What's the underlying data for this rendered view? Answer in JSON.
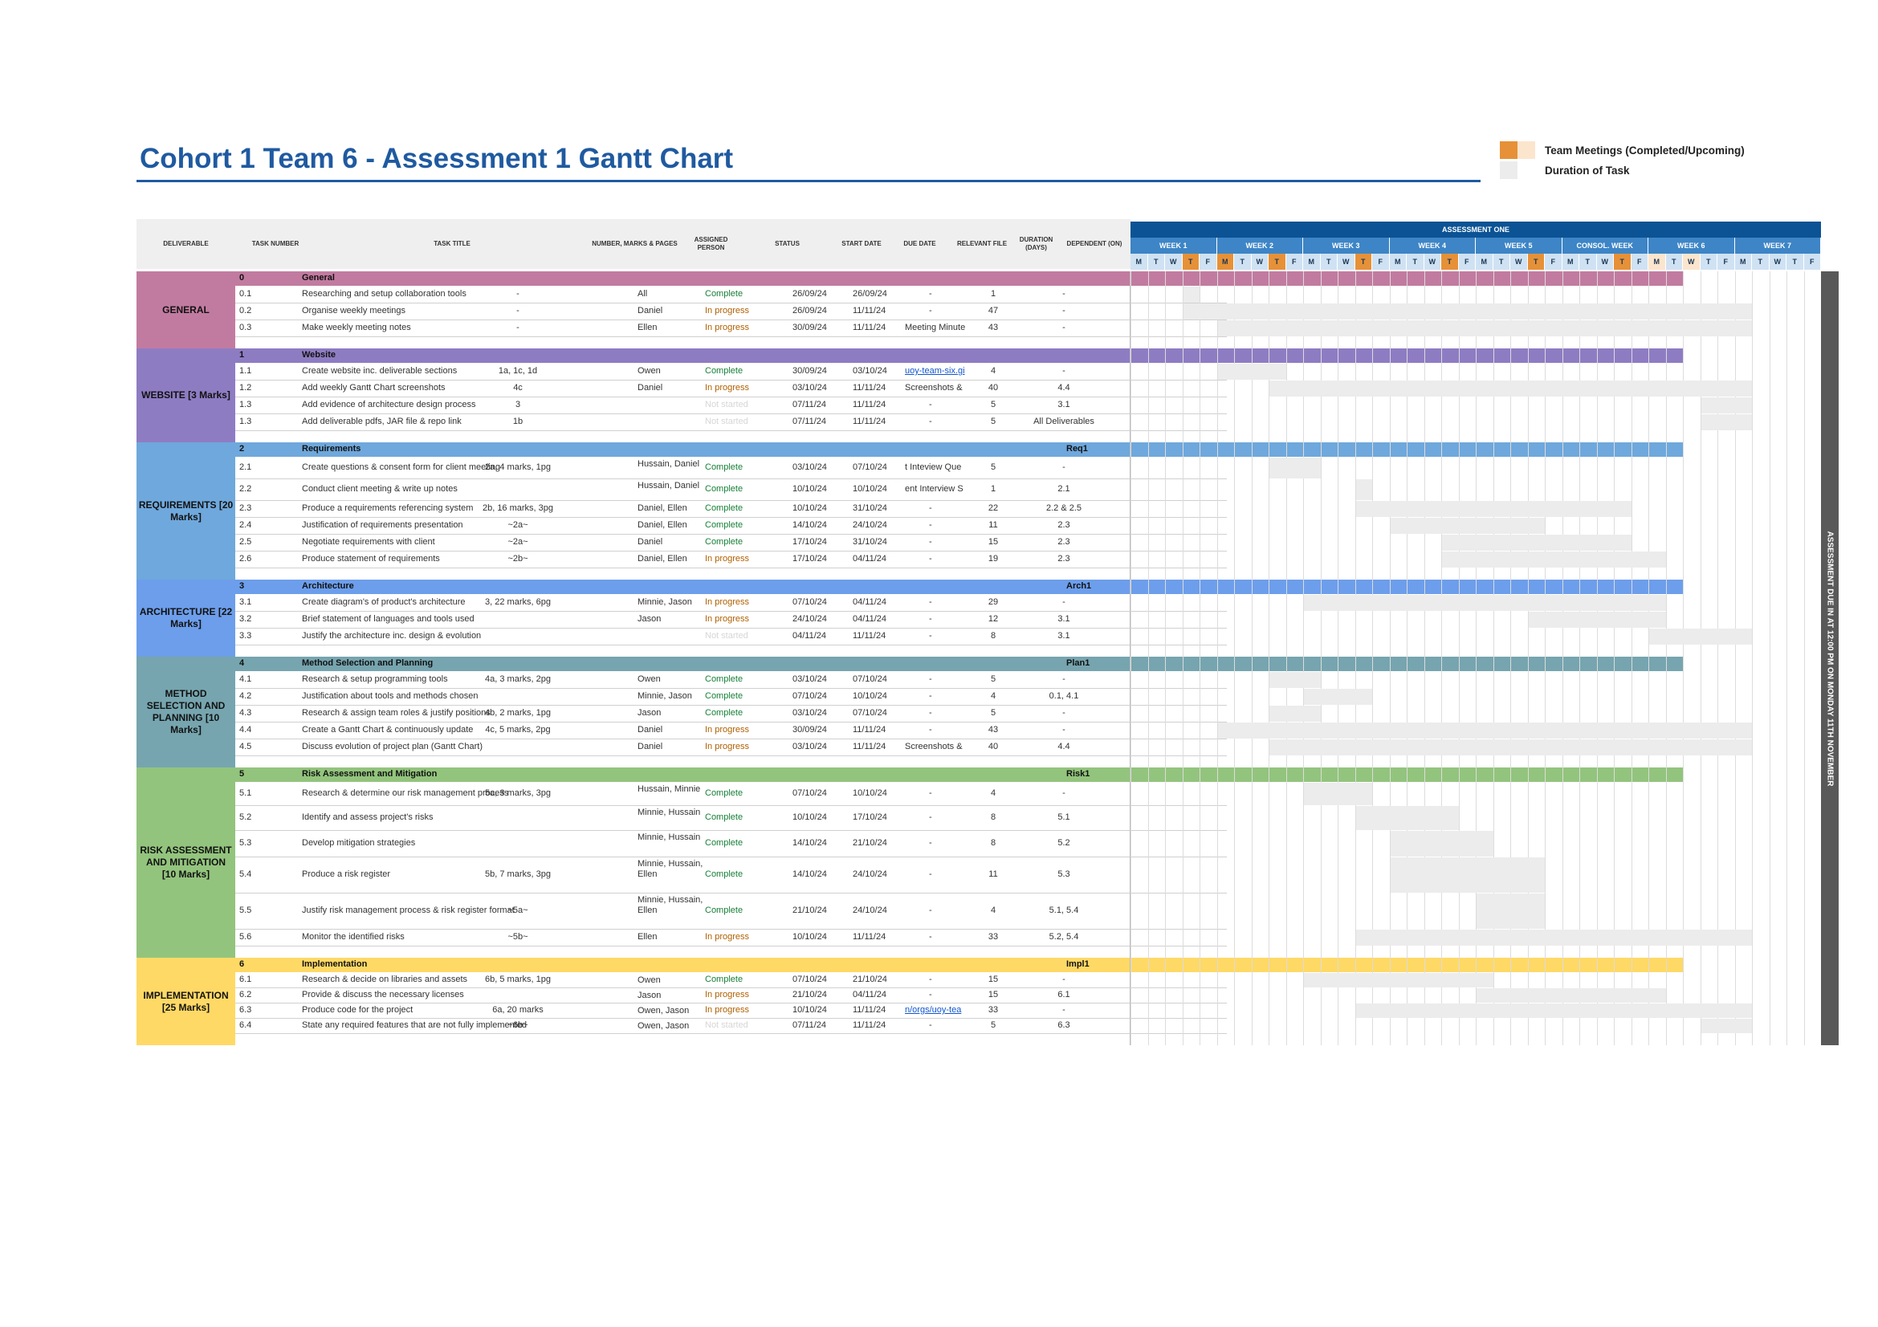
{
  "title": "Cohort 1 Team 6 - Assessment 1 Gantt Chart",
  "legend": [
    {
      "label": "Team Meetings (Completed/Upcoming)",
      "colors": [
        "#e69138",
        "#fce5cd"
      ]
    },
    {
      "label": "Duration of Task",
      "colors": [
        "#ececec"
      ]
    }
  ],
  "headers": {
    "deliverable": "DELIVERABLE",
    "task_number": "TASK NUMBER",
    "task_title": "TASK TITLE",
    "marks": "NUMBER, MARKS & PAGES",
    "assigned": "ASSIGNED PERSON",
    "status": "STATUS",
    "start": "START DATE",
    "due": "DUE DATE",
    "file": "RELEVANT FILE",
    "duration": "DURATION (DAYS)",
    "dependent": "DEPENDENT (ON)"
  },
  "assessment_label": "ASSESSMENT ONE",
  "weeks": [
    "WEEK 1",
    "WEEK 2",
    "WEEK 3",
    "WEEK 4",
    "WEEK 5",
    "CONSOL. WEEK",
    "WEEK 6",
    "WEEK 7"
  ],
  "days": [
    "M",
    "T",
    "W",
    "T",
    "F"
  ],
  "due_banner": "ASSESSMENT DUE IN AT 12:00 PM ON MONDAY 11TH NOVEMBER",
  "colors": {
    "general": "#c27ba0",
    "website": "#8e7cc3",
    "requirements": "#6fa8dc",
    "architecture": "#6d9eeb",
    "method": "#76a5af",
    "risk": "#93c47d",
    "implementation": "#ffd966",
    "header_dark": "#0b5394",
    "header_mid": "#3d85c6",
    "day_light": "#cfe2f3",
    "meeting_done": "#e69138",
    "meeting_upcoming": "#fce5cd"
  },
  "sections": [
    {
      "key": "general",
      "label": "GENERAL",
      "num": "0",
      "name": "General",
      "ref": "",
      "tasks": [
        {
          "num": "0.1",
          "title": "Researching and setup collaboration tools",
          "marks": "-",
          "person": "All",
          "status": "Complete",
          "start": "26/09/24",
          "due": "26/09/24",
          "file": "-",
          "duration": "1",
          "dep": "-"
        },
        {
          "num": "0.2",
          "title": "Organise weekly meetings",
          "marks": "-",
          "person": "Daniel",
          "status": "In progress",
          "start": "26/09/24",
          "due": "11/11/24",
          "file": "-",
          "duration": "47",
          "dep": "-"
        },
        {
          "num": "0.3",
          "title": "Make weekly meeting notes",
          "marks": "-",
          "person": "Ellen",
          "status": "In progress",
          "start": "30/09/24",
          "due": "11/11/24",
          "file": "Meeting Minute",
          "duration": "43",
          "dep": "-"
        }
      ]
    },
    {
      "key": "website",
      "label": "WEBSITE [3 Marks]",
      "num": "1",
      "name": "Website",
      "ref": "",
      "tasks": [
        {
          "num": "1.1",
          "title": "Create website inc. deliverable sections",
          "marks": "1a, 1c, 1d",
          "person": "Owen",
          "status": "Complete",
          "start": "30/09/24",
          "due": "03/10/24",
          "file": "uoy-team-six.gi",
          "duration": "4",
          "dep": "-"
        },
        {
          "num": "1.2",
          "title": "Add weekly Gantt Chart screenshots",
          "marks": "4c",
          "person": "Daniel",
          "status": "In progress",
          "start": "03/10/24",
          "due": "11/11/24",
          "file": "Screenshots &",
          "duration": "40",
          "dep": "4.4"
        },
        {
          "num": "1.3",
          "title": "Add evidence of architecture design process",
          "marks": "3",
          "person": "",
          "status": "Not started",
          "start": "07/11/24",
          "due": "11/11/24",
          "file": "-",
          "duration": "5",
          "dep": "3.1"
        },
        {
          "num": "1.3",
          "title": "Add deliverable pdfs, JAR file & repo link",
          "marks": "1b",
          "person": "",
          "status": "Not started",
          "start": "07/11/24",
          "due": "11/11/24",
          "file": "-",
          "duration": "5",
          "dep": "All Deliverables"
        }
      ]
    },
    {
      "key": "requirements",
      "label": "REQUIREMENTS [20 Marks]",
      "num": "2",
      "name": "Requirements",
      "ref": "Req1",
      "tasks": [
        {
          "num": "2.1",
          "title": "Create questions & consent form for client meeting",
          "marks": "2a, 4 marks, 1pg",
          "person": "Hussain, Daniel",
          "status": "Complete",
          "start": "03/10/24",
          "due": "07/10/24",
          "file": "t Inteview Que",
          "duration": "5",
          "dep": "-"
        },
        {
          "num": "2.2",
          "title": "Conduct client meeting & write up notes",
          "marks": "",
          "person": "Hussain, Daniel",
          "status": "Complete",
          "start": "10/10/24",
          "due": "10/10/24",
          "file": "ent Interview S",
          "duration": "1",
          "dep": "2.1"
        },
        {
          "num": "2.3",
          "title": "Produce a requirements referencing system",
          "marks": "2b, 16 marks, 3pg",
          "person": "Daniel, Ellen",
          "status": "Complete",
          "start": "10/10/24",
          "due": "31/10/24",
          "file": "-",
          "duration": "22",
          "dep": "2.2 & 2.5"
        },
        {
          "num": "2.4",
          "title": "Justification of requirements presentation",
          "marks": "~2a~",
          "person": "Daniel, Ellen",
          "status": "Complete",
          "start": "14/10/24",
          "due": "24/10/24",
          "file": "-",
          "duration": "11",
          "dep": "2.3"
        },
        {
          "num": "2.5",
          "title": "Negotiate requirements with client",
          "marks": "~2a~",
          "person": "Daniel",
          "status": "Complete",
          "start": "17/10/24",
          "due": "31/10/24",
          "file": "-",
          "duration": "15",
          "dep": "2.3"
        },
        {
          "num": "2.6",
          "title": "Produce statement of requirements",
          "marks": "~2b~",
          "person": "Daniel, Ellen",
          "status": "In progress",
          "start": "17/10/24",
          "due": "04/11/24",
          "file": "-",
          "duration": "19",
          "dep": "2.3"
        }
      ]
    },
    {
      "key": "architecture",
      "label": "ARCHITECTURE [22 Marks]",
      "num": "3",
      "name": "Architecture",
      "ref": "Arch1",
      "tasks": [
        {
          "num": "3.1",
          "title": "Create diagram's of product's architecture",
          "marks": "3, 22 marks, 6pg",
          "person": "Minnie, Jason",
          "status": "In progress",
          "start": "07/10/24",
          "due": "04/11/24",
          "file": "-",
          "duration": "29",
          "dep": "-"
        },
        {
          "num": "3.2",
          "title": "Brief statement of languages and tools used",
          "marks": "",
          "person": "Jason",
          "status": "In progress",
          "start": "24/10/24",
          "due": "04/11/24",
          "file": "-",
          "duration": "12",
          "dep": "3.1"
        },
        {
          "num": "3.3",
          "title": "Justify the architecture inc. design & evolution",
          "marks": "",
          "person": "",
          "status": "Not started",
          "start": "04/11/24",
          "due": "11/11/24",
          "file": "-",
          "duration": "8",
          "dep": "3.1"
        }
      ]
    },
    {
      "key": "method",
      "label": "METHOD SELECTION AND PLANNING [10 Marks]",
      "num": "4",
      "name": "Method Selection and Planning",
      "ref": "Plan1",
      "tasks": [
        {
          "num": "4.1",
          "title": "Research & setup programming tools",
          "marks": "4a, 3 marks, 2pg",
          "person": "Owen",
          "status": "Complete",
          "start": "03/10/24",
          "due": "07/10/24",
          "file": "-",
          "duration": "5",
          "dep": "-"
        },
        {
          "num": "4.2",
          "title": "Justification about tools and methods chosen",
          "marks": "",
          "person": "Minnie, Jason",
          "status": "Complete",
          "start": "07/10/24",
          "due": "10/10/24",
          "file": "-",
          "duration": "4",
          "dep": "0.1, 4.1"
        },
        {
          "num": "4.3",
          "title": "Research & assign team roles & justify positions",
          "marks": "4b, 2 marks, 1pg",
          "person": "Jason",
          "status": "Complete",
          "start": "03/10/24",
          "due": "07/10/24",
          "file": "-",
          "duration": "5",
          "dep": "-"
        },
        {
          "num": "4.4",
          "title": "Create a Gantt Chart & continuously update",
          "marks": "4c, 5 marks, 2pg",
          "person": "Daniel",
          "status": "In progress",
          "start": "30/09/24",
          "due": "11/11/24",
          "file": "-",
          "duration": "43",
          "dep": "-"
        },
        {
          "num": "4.5",
          "title": "Discuss evolution of project plan (Gantt Chart)",
          "marks": "",
          "person": "Daniel",
          "status": "In progress",
          "start": "03/10/24",
          "due": "11/11/24",
          "file": "Screenshots &",
          "duration": "40",
          "dep": "4.4"
        }
      ]
    },
    {
      "key": "risk",
      "label": "RISK ASSESSMENT AND MITIGATION [10 Marks]",
      "num": "5",
      "name": "Risk Assessment and Mitigation",
      "ref": "Risk1",
      "tasks": [
        {
          "num": "5.1",
          "title": "Research & determine our risk management process",
          "marks": "5a, 3 marks, 3pg",
          "person": "Hussain, Minnie",
          "status": "Complete",
          "start": "07/10/24",
          "due": "10/10/24",
          "file": "-",
          "duration": "4",
          "dep": "-"
        },
        {
          "num": "5.2",
          "title": "Identify and assess project's risks",
          "marks": "",
          "person": "Minnie, Hussain",
          "status": "Complete",
          "start": "10/10/24",
          "due": "17/10/24",
          "file": "-",
          "duration": "8",
          "dep": "5.1"
        },
        {
          "num": "5.3",
          "title": "Develop mitigation strategies",
          "marks": "",
          "person": "Minnie, Hussain",
          "status": "Complete",
          "start": "14/10/24",
          "due": "21/10/24",
          "file": "-",
          "duration": "8",
          "dep": "5.2"
        },
        {
          "num": "5.4",
          "title": "Produce a risk register",
          "marks": "5b, 7 marks, 3pg",
          "person": "Minnie, Hussain, Ellen",
          "status": "Complete",
          "start": "14/10/24",
          "due": "24/10/24",
          "file": "-",
          "duration": "11",
          "dep": "5.3"
        },
        {
          "num": "5.5",
          "title": "Justify risk management process & risk register format",
          "marks": "~5a~",
          "person": "Minnie, Hussain, Ellen",
          "status": "Complete",
          "start": "21/10/24",
          "due": "24/10/24",
          "file": "-",
          "duration": "4",
          "dep": "5.1, 5.4"
        },
        {
          "num": "5.6",
          "title": "Monitor the identified risks",
          "marks": "~5b~",
          "person": "Ellen",
          "status": "In progress",
          "start": "10/10/24",
          "due": "11/11/24",
          "file": "-",
          "duration": "33",
          "dep": "5.2, 5.4"
        }
      ]
    },
    {
      "key": "implementation",
      "label": "IMPLEMENTATION [25 Marks]",
      "num": "6",
      "name": "Implementation",
      "ref": "Impl1",
      "tasks": [
        {
          "num": "6.1",
          "title": "Research & decide on libraries and assets",
          "marks": "6b, 5 marks, 1pg",
          "person": "Owen",
          "status": "Complete",
          "start": "07/10/24",
          "due": "21/10/24",
          "file": "-",
          "duration": "15",
          "dep": "-"
        },
        {
          "num": "6.2",
          "title": "Provide & discuss the necessary licenses",
          "marks": "",
          "person": "Jason",
          "status": "In progress",
          "start": "21/10/24",
          "due": "04/11/24",
          "file": "-",
          "duration": "15",
          "dep": "6.1"
        },
        {
          "num": "6.3",
          "title": "Produce code for the project",
          "marks": "6a, 20 marks",
          "person": "Owen, Jason",
          "status": "In progress",
          "start": "10/10/24",
          "due": "11/11/24",
          "file": "n/orgs/uoy-tea",
          "duration": "33",
          "dep": "-"
        },
        {
          "num": "6.4",
          "title": "State any required features that are not fully implemented",
          "marks": "~6b~",
          "person": "Owen, Jason",
          "status": "Not started",
          "start": "07/11/24",
          "due": "11/11/24",
          "file": "-",
          "duration": "5",
          "dep": "6.3"
        }
      ]
    }
  ]
}
